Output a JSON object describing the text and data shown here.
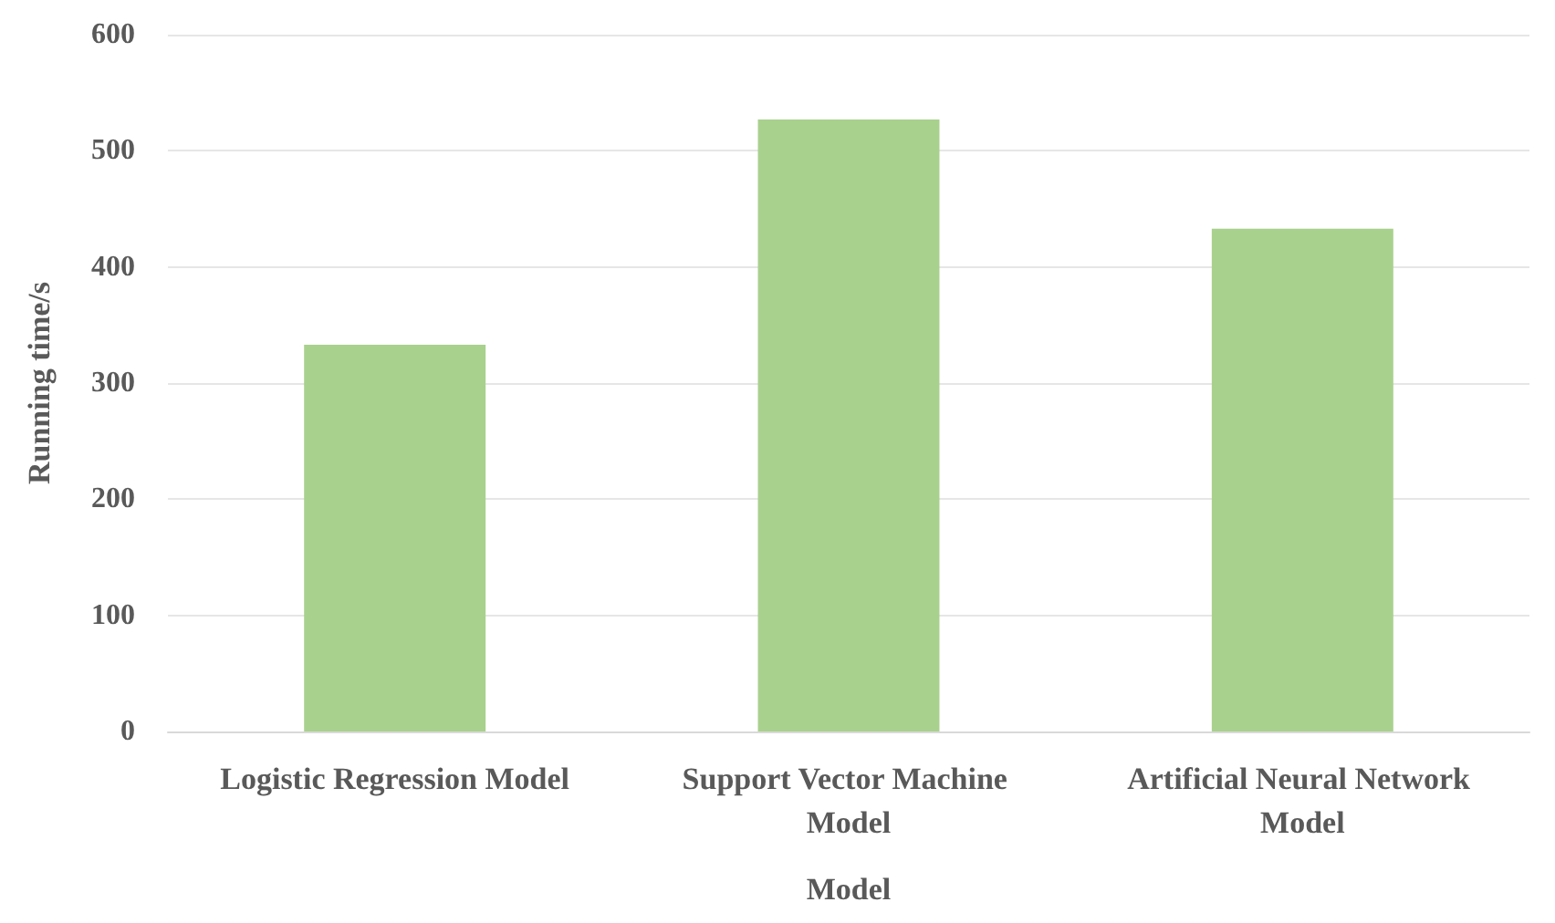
{
  "chart_data": {
    "type": "bar",
    "xlabel": "Model",
    "ylabel": "Running time/s",
    "categories": [
      "Logistic Regression Model",
      "Support Vector Machine Model",
      "Artificial Neural Network Model"
    ],
    "values": [
      333,
      527,
      433
    ],
    "color": "#a9d18e",
    "ylim": [
      0,
      600
    ],
    "yticks": [
      0,
      100,
      200,
      300,
      400,
      500,
      600
    ],
    "grid": "y"
  }
}
